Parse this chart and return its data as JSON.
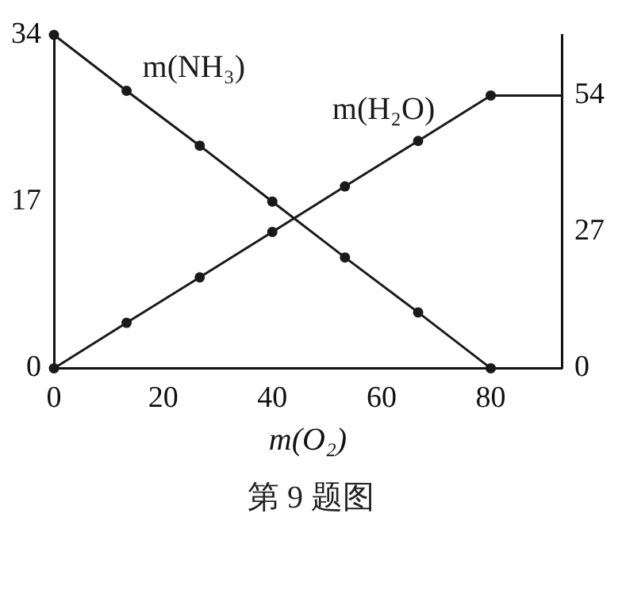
{
  "chart_data": {
    "type": "line",
    "xlabel": "m(O₂)",
    "marker": "circle",
    "xlim": [
      0,
      93
    ],
    "xticks": [
      0,
      20,
      40,
      60,
      80
    ],
    "ylim": [
      0,
      34
    ],
    "yticks": [
      0,
      17,
      34
    ],
    "y2lim": [
      0,
      66
    ],
    "y2ticks": [
      0,
      27,
      54
    ],
    "series": [
      {
        "name": "m(NH₃)",
        "color": "#1a1a1a",
        "x": [
          0,
          13.3,
          26.7,
          40,
          53.3,
          66.7,
          80
        ],
        "values": [
          34,
          28.3,
          22.7,
          17,
          11.3,
          5.7,
          0
        ]
      },
      {
        "name": "m(H₂O)",
        "color": "#1a1a1a",
        "axis": "y2",
        "x": [
          0,
          13.3,
          26.7,
          40,
          53.3,
          66.7,
          80,
          93
        ],
        "values": [
          0,
          9,
          18,
          27,
          36,
          45,
          54,
          54
        ]
      }
    ],
    "annotations": [
      "第 9 题图"
    ]
  }
}
